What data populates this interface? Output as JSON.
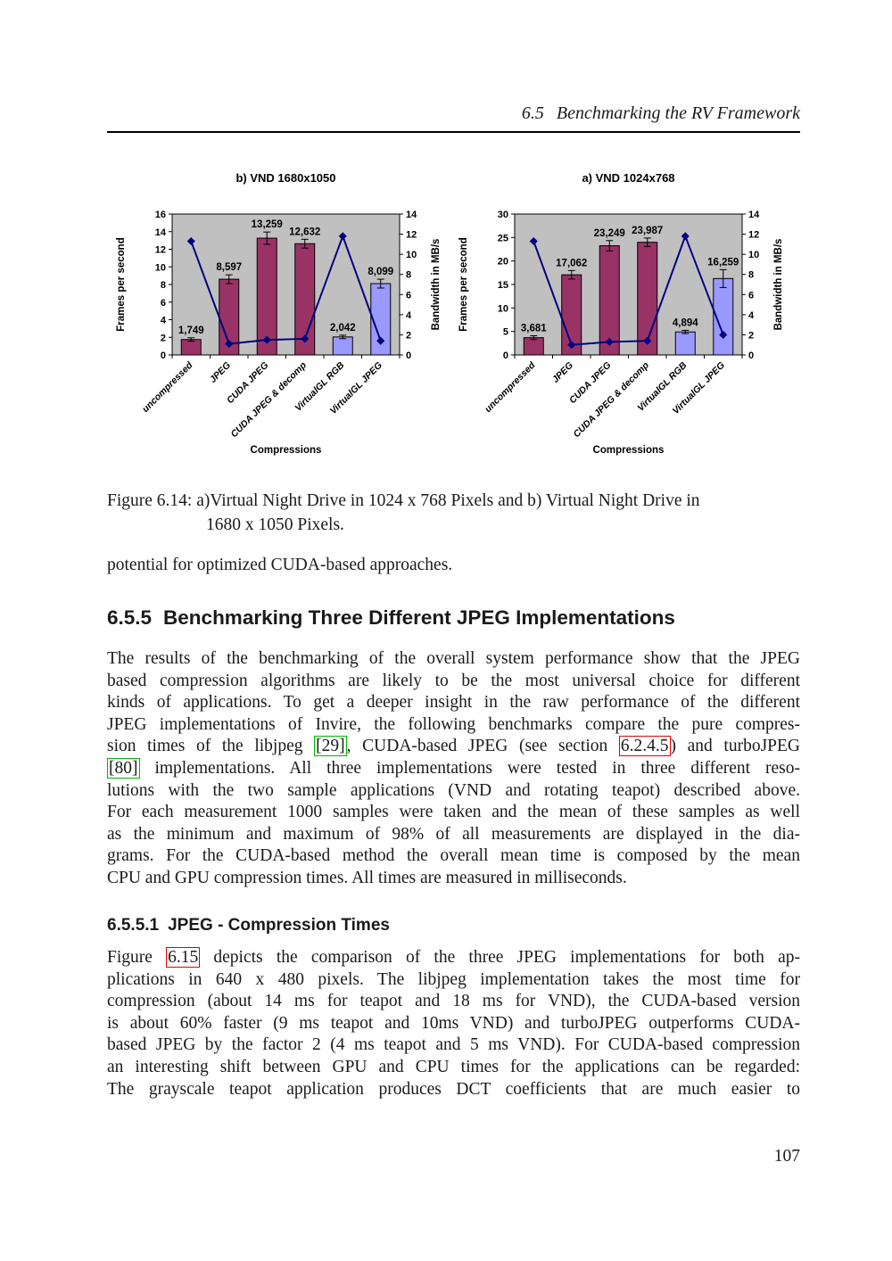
{
  "page": {
    "number": "107"
  },
  "running_header": {
    "number": "6.5",
    "title": "Benchmarking the RV Framework"
  },
  "figure": {
    "caption_line1": "Figure 6.14: a)Virtual Night Drive in 1024 x 768 Pixels and b) Virtual Night Drive in",
    "caption_line2": "1680 x 1050 Pixels."
  },
  "lead_text": "potential for optimized CUDA-based approaches.",
  "section_heading": {
    "number": "6.5.5",
    "title": "Benchmarking Three Different JPEG Implementations"
  },
  "subsection_heading": {
    "number": "6.5.5.1",
    "title": "JPEG - Compression Times"
  },
  "link_colors": {
    "citation": "#00b400",
    "internal": "#e00000"
  },
  "paragraph1_lines": [
    [
      {
        "t": "The results of the benchmarking of the overall system performance show that the JPEG"
      }
    ],
    [
      {
        "t": "based compression algorithms are likely to be the most universal choice for different"
      }
    ],
    [
      {
        "t": "kinds of applications. To get a deeper insight in the raw performance of the different"
      }
    ],
    [
      {
        "t": "JPEG implementations of Invire, the following benchmarks compare the pure compres-"
      }
    ],
    [
      {
        "t": "sion times of the libjpeg "
      },
      {
        "t": "[29]",
        "box": "green"
      },
      {
        "t": ", CUDA-based JPEG (see section "
      },
      {
        "t": "6.2.4.5",
        "box": "red"
      },
      {
        "t": ") and turboJPEG"
      }
    ],
    [
      {
        "t": "[80]",
        "box": "green"
      },
      {
        "t": " implementations. All three implementations were tested in three different reso-"
      }
    ],
    [
      {
        "t": "lutions with the two sample applications (VND and rotating teapot) described above."
      }
    ],
    [
      {
        "t": "For each measurement 1000 samples were taken and the mean of these samples as well"
      }
    ],
    [
      {
        "t": "as the minimum and maximum of 98% of all measurements are displayed in the dia-"
      }
    ],
    [
      {
        "t": "grams. For the CUDA-based method the overall mean time is composed by the mean"
      }
    ],
    [
      {
        "t": "CPU and GPU compression times. All times are measured in milliseconds."
      }
    ]
  ],
  "paragraph2_lines": [
    [
      {
        "t": "Figure "
      },
      {
        "t": "6.15",
        "box": "red"
      },
      {
        "t": " depicts the comparison of the three JPEG implementations for both ap-"
      }
    ],
    [
      {
        "t": "plications in 640 x 480 pixels. The libjpeg implementation takes the most time for"
      }
    ],
    [
      {
        "t": "compression (about 14 ms for teapot and 18 ms for VND), the CUDA-based version"
      }
    ],
    [
      {
        "t": "is about 60% faster (9 ms teapot and 10ms VND) and turboJPEG outperforms CUDA-"
      }
    ],
    [
      {
        "t": "based JPEG by the factor 2 (4 ms teapot and 5 ms VND). For CUDA-based compression"
      }
    ],
    [
      {
        "t": "an interesting shift between GPU and CPU times for the applications can be regarded:"
      }
    ],
    [
      {
        "t": "The grayscale teapot application produces DCT coefficients that are much easier to"
      }
    ]
  ],
  "chart_data": [
    {
      "type": "bar",
      "title": "b) VND 1680x1050",
      "categories": [
        "uncompressed",
        "JPEG",
        "CUDA JPEG",
        "CUDA JPEG & decomp",
        "VirtualGL RGB",
        "VirtualGL JPEG"
      ],
      "xlabel": "Compressions",
      "ylabel_left": "Frames per second",
      "ylabel_right": "Bandwidth in MB/s",
      "ylim_left": [
        0,
        16
      ],
      "ystep_left": 2,
      "ylim_right": [
        0,
        14
      ],
      "ystep_right": 2,
      "grid": false,
      "plot_bg": "#c0c0c0",
      "bars": {
        "name": "Frames per second",
        "values": [
          1.749,
          8.597,
          13.259,
          12.632,
          2.042,
          8.099
        ],
        "labels": [
          "1,749",
          "8,597",
          "13,259",
          "12,632",
          "2,042",
          "8,099"
        ],
        "errors": [
          0.2,
          0.5,
          0.7,
          0.5,
          0.2,
          0.5
        ],
        "colors": [
          "#993366",
          "#993366",
          "#993366",
          "#993366",
          "#9999ff",
          "#9999ff"
        ]
      },
      "line": {
        "name": "Bandwidth in MB/s",
        "values": [
          11.3,
          1.1,
          1.5,
          1.6,
          11.8,
          1.4
        ],
        "color": "#000080"
      }
    },
    {
      "type": "bar",
      "title": "a) VND 1024x768",
      "categories": [
        "uncompressed",
        "JPEG",
        "CUDA JPEG",
        "CUDA JPEG & decomp",
        "VirtualGL RGB",
        "VirtualGL JPEG"
      ],
      "xlabel": "Compressions",
      "ylabel_left": "Frames per second",
      "ylabel_right": "Bandwidth in MB/s",
      "ylim_left": [
        0,
        30
      ],
      "ystep_left": 5,
      "ylim_right": [
        0,
        14
      ],
      "ystep_right": 2,
      "grid": false,
      "plot_bg": "#c0c0c0",
      "bars": {
        "name": "Frames per second",
        "values": [
          3.681,
          17.062,
          23.249,
          23.987,
          4.894,
          16.259
        ],
        "labels": [
          "3,681",
          "17,062",
          "23,249",
          "23,987",
          "4,894",
          "16,259"
        ],
        "errors": [
          0.4,
          0.9,
          1.1,
          0.9,
          0.35,
          1.9
        ],
        "colors": [
          "#993366",
          "#993366",
          "#993366",
          "#993366",
          "#9999ff",
          "#9999ff"
        ]
      },
      "line": {
        "name": "Bandwidth in MB/s",
        "values": [
          11.3,
          1.0,
          1.3,
          1.4,
          11.8,
          2.0
        ],
        "color": "#000080"
      }
    }
  ]
}
